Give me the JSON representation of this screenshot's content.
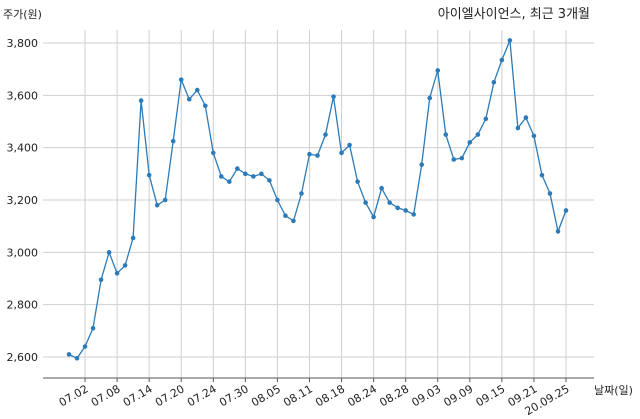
{
  "chart_data": {
    "type": "line",
    "title": "아이엘사이언스, 최근 3개월",
    "ylabel": "주가(원)",
    "xlabel": "날짜(일)",
    "ylim": [
      2550,
      3870
    ],
    "y_ticks": [
      2600,
      2800,
      3000,
      3200,
      3400,
      3600,
      3800
    ],
    "y_tick_labels": [
      "2,600",
      "2,800",
      "3,000",
      "3,200",
      "3,400",
      "3,600",
      "3,800"
    ],
    "x_tick_labels": [
      "07.02",
      "07.08",
      "07.14",
      "07.20",
      "07.24",
      "07.30",
      "08.05",
      "08.11",
      "08.18",
      "08.24",
      "08.28",
      "09.03",
      "09.09",
      "09.15",
      "09.21",
      "20.09.25"
    ],
    "x_tick_index": [
      2,
      6,
      10,
      14,
      18,
      22,
      26,
      30,
      34,
      38,
      42,
      46,
      50,
      54,
      58,
      62
    ],
    "grid": true,
    "line_color": "#2b7bba",
    "series": [
      {
        "values": [
          2610,
          2595,
          2640,
          2710,
          2895,
          3000,
          2920,
          2950,
          3055,
          3580,
          3295,
          3180,
          3200,
          3425,
          3660,
          3585,
          3620,
          3560,
          3380,
          3290,
          3270,
          3320,
          3300,
          3290,
          3300,
          3275,
          3200,
          3140,
          3120,
          3225,
          3375,
          3370,
          3450,
          3595,
          3380,
          3410,
          3270,
          3190,
          3135,
          3245,
          3190,
          3170,
          3160,
          3145,
          3335,
          3590,
          3695,
          3450,
          3355,
          3360,
          3420,
          3450,
          3510,
          3650,
          3735,
          3810,
          3475,
          3515,
          3445,
          3295,
          3225,
          3080,
          3160
        ]
      }
    ]
  }
}
